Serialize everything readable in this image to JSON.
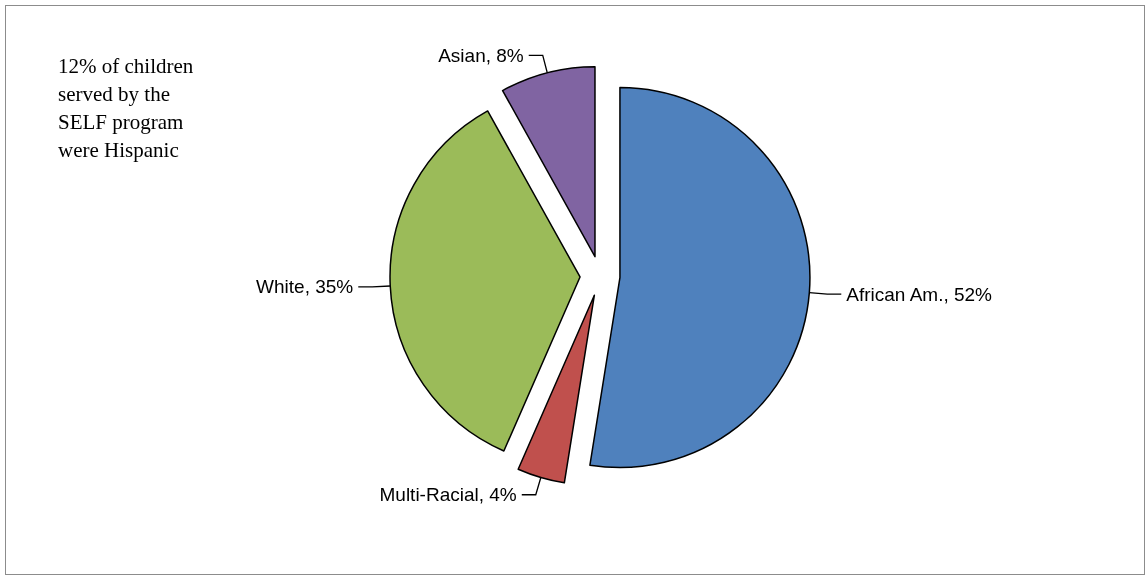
{
  "chart_data": {
    "type": "pie",
    "categories": [
      "African Am.",
      "Multi-Racial",
      "White",
      "Asian"
    ],
    "values": [
      52,
      4,
      35,
      8
    ],
    "value_labels": [
      "52%",
      "4%",
      "35%",
      "8%"
    ],
    "colors": [
      "#4f81bd",
      "#c0504d",
      "#9bbb59",
      "#8064a2"
    ],
    "annotations": [
      "12% of children served by the SELF program were Hispanic"
    ]
  }
}
